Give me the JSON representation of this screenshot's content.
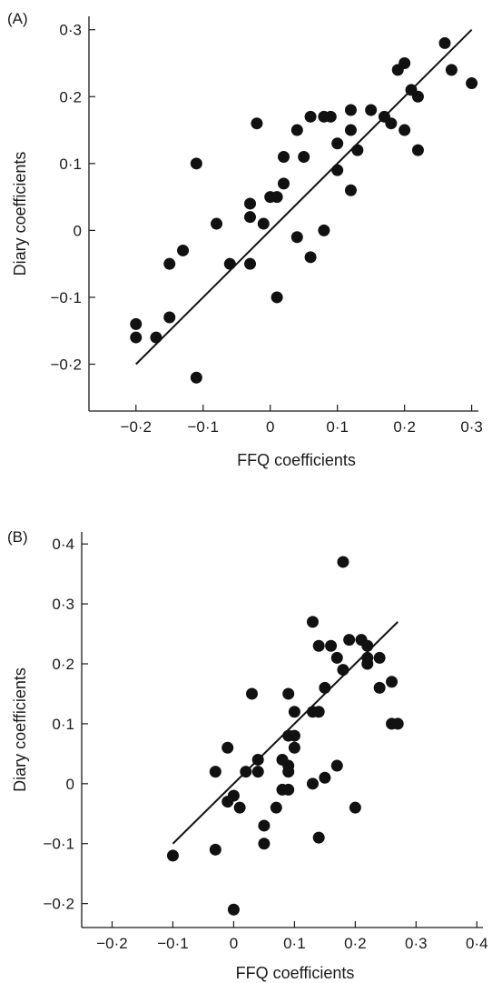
{
  "chart_data": [
    {
      "type": "scatter",
      "panel_label": "(A)",
      "xlabel": "FFQ coefficients",
      "ylabel": "Diary coefficients",
      "xlim": [
        -0.27,
        0.31
      ],
      "ylim": [
        -0.27,
        0.32
      ],
      "x_ticks": [
        -0.2,
        -0.1,
        0,
        0.1,
        0.2,
        0.3
      ],
      "x_tick_labels": [
        "−0·2",
        "−0·1",
        "0",
        "0·1",
        "0·2",
        "0·3"
      ],
      "y_ticks": [
        -0.2,
        -0.1,
        0,
        0.1,
        0.2,
        0.3
      ],
      "y_tick_labels": [
        "−0·2",
        "−0·1",
        "0",
        "0·1",
        "0·2",
        "0·3"
      ],
      "grid": false,
      "fit_line": {
        "x": [
          -0.2,
          0.3
        ],
        "y": [
          -0.2,
          0.3
        ]
      },
      "points": [
        [
          -0.2,
          -0.14
        ],
        [
          -0.2,
          -0.16
        ],
        [
          -0.17,
          -0.16
        ],
        [
          -0.15,
          -0.13
        ],
        [
          -0.15,
          -0.05
        ],
        [
          -0.13,
          -0.03
        ],
        [
          -0.11,
          -0.22
        ],
        [
          -0.11,
          0.1
        ],
        [
          -0.08,
          0.01
        ],
        [
          -0.06,
          -0.05
        ],
        [
          -0.03,
          -0.05
        ],
        [
          -0.03,
          0.02
        ],
        [
          -0.03,
          0.04
        ],
        [
          -0.02,
          0.16
        ],
        [
          -0.01,
          0.01
        ],
        [
          0.0,
          0.05
        ],
        [
          0.01,
          0.05
        ],
        [
          0.01,
          -0.1
        ],
        [
          0.02,
          0.07
        ],
        [
          0.02,
          0.11
        ],
        [
          0.04,
          0.15
        ],
        [
          0.04,
          -0.01
        ],
        [
          0.05,
          0.11
        ],
        [
          0.06,
          0.17
        ],
        [
          0.06,
          -0.04
        ],
        [
          0.08,
          0.17
        ],
        [
          0.08,
          0.0
        ],
        [
          0.09,
          0.17
        ],
        [
          0.1,
          0.13
        ],
        [
          0.1,
          0.09
        ],
        [
          0.12,
          0.18
        ],
        [
          0.12,
          0.15
        ],
        [
          0.12,
          0.06
        ],
        [
          0.13,
          0.12
        ],
        [
          0.15,
          0.18
        ],
        [
          0.17,
          0.17
        ],
        [
          0.18,
          0.16
        ],
        [
          0.19,
          0.24
        ],
        [
          0.2,
          0.25
        ],
        [
          0.2,
          0.15
        ],
        [
          0.21,
          0.21
        ],
        [
          0.22,
          0.2
        ],
        [
          0.22,
          0.12
        ],
        [
          0.26,
          0.28
        ],
        [
          0.27,
          0.24
        ],
        [
          0.3,
          0.22
        ]
      ]
    },
    {
      "type": "scatter",
      "panel_label": "(B)",
      "xlabel": "FFQ coefficients",
      "ylabel": "Diary coefficients",
      "xlim": [
        -0.25,
        0.41
      ],
      "ylim": [
        -0.24,
        0.42
      ],
      "x_ticks": [
        -0.2,
        -0.1,
        0,
        0.1,
        0.2,
        0.3,
        0.4
      ],
      "x_tick_labels": [
        "−0·2",
        "−0·1",
        "0",
        "0·1",
        "0·2",
        "0·3",
        "0·4"
      ],
      "y_ticks": [
        -0.2,
        -0.1,
        0,
        0.1,
        0.2,
        0.3,
        0.4
      ],
      "y_tick_labels": [
        "−0·2",
        "−0·1",
        "0",
        "0·1",
        "0·2",
        "0·3",
        "0·4"
      ],
      "grid": false,
      "fit_line": {
        "x": [
          -0.1,
          0.27
        ],
        "y": [
          -0.1,
          0.27
        ]
      },
      "points": [
        [
          -0.1,
          -0.12
        ],
        [
          -0.03,
          -0.11
        ],
        [
          -0.03,
          0.02
        ],
        [
          -0.01,
          0.06
        ],
        [
          -0.01,
          -0.03
        ],
        [
          0.0,
          -0.21
        ],
        [
          0.0,
          -0.02
        ],
        [
          0.01,
          -0.04
        ],
        [
          0.02,
          0.02
        ],
        [
          0.03,
          0.15
        ],
        [
          0.04,
          0.04
        ],
        [
          0.04,
          0.02
        ],
        [
          0.05,
          -0.07
        ],
        [
          0.05,
          -0.1
        ],
        [
          0.07,
          -0.04
        ],
        [
          0.08,
          0.04
        ],
        [
          0.08,
          -0.01
        ],
        [
          0.09,
          0.15
        ],
        [
          0.09,
          0.08
        ],
        [
          0.09,
          0.03
        ],
        [
          0.09,
          0.02
        ],
        [
          0.09,
          -0.01
        ],
        [
          0.1,
          0.12
        ],
        [
          0.1,
          0.08
        ],
        [
          0.1,
          0.06
        ],
        [
          0.13,
          0.27
        ],
        [
          0.13,
          0.12
        ],
        [
          0.13,
          0.0
        ],
        [
          0.14,
          0.23
        ],
        [
          0.14,
          0.12
        ],
        [
          0.14,
          -0.09
        ],
        [
          0.15,
          0.16
        ],
        [
          0.15,
          0.01
        ],
        [
          0.16,
          0.23
        ],
        [
          0.17,
          0.21
        ],
        [
          0.17,
          0.03
        ],
        [
          0.18,
          0.37
        ],
        [
          0.18,
          0.19
        ],
        [
          0.19,
          0.24
        ],
        [
          0.2,
          -0.04
        ],
        [
          0.21,
          0.24
        ],
        [
          0.22,
          0.23
        ],
        [
          0.22,
          0.21
        ],
        [
          0.22,
          0.2
        ],
        [
          0.24,
          0.21
        ],
        [
          0.24,
          0.16
        ],
        [
          0.26,
          0.17
        ],
        [
          0.26,
          0.1
        ],
        [
          0.27,
          0.1
        ]
      ]
    }
  ]
}
